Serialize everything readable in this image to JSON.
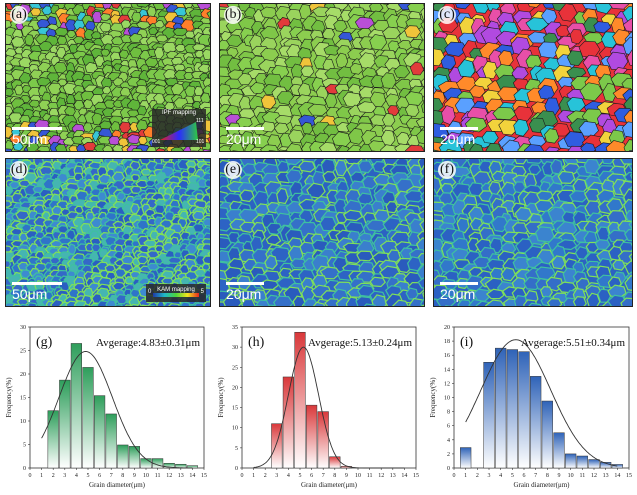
{
  "panels": {
    "a": {
      "label": "(a)",
      "scale": "50μm",
      "legend_title": "IPF mapping",
      "legend_111": "111",
      "legend_001": "001",
      "legend_101": "101"
    },
    "b": {
      "label": "(b)",
      "scale": "20μm"
    },
    "c": {
      "label": "(c)",
      "scale": "20μm"
    },
    "d": {
      "label": "(d)",
      "scale": "50μm",
      "legend_title": "KAM mapping",
      "legend_min": "0",
      "legend_max": "5"
    },
    "e": {
      "label": "(e)",
      "scale": "20μm"
    },
    "f": {
      "label": "(f)",
      "scale": "20μm"
    }
  },
  "colors": {
    "g": "#2e9e5b",
    "h": "#d9383a",
    "i": "#2f63b8"
  },
  "chart_data": [
    {
      "type": "bar",
      "panel": "(g)",
      "annotation": "Avgerage:4.83±0.31μm",
      "xlabel": "Grain diameter(μm)",
      "ylabel": "Frequency(%)",
      "xlim": [
        0,
        15
      ],
      "ylim": [
        0,
        30
      ],
      "yticks": [
        0,
        5,
        10,
        15,
        20,
        25,
        30
      ],
      "x": [
        2,
        3,
        4,
        5,
        6,
        7,
        8,
        9,
        10,
        11,
        12,
        13,
        14
      ],
      "values": [
        12.2,
        18.7,
        26.5,
        21.4,
        15.4,
        11.5,
        4.9,
        4.6,
        2.0,
        2.0,
        1.0,
        0.8,
        0.5
      ],
      "fit_peak": 4.8,
      "fit_sigma": 2.3,
      "fit_height": 24.8
    },
    {
      "type": "bar",
      "panel": "(h)",
      "annotation": "Avgerage:5.13±0.24μm",
      "xlabel": "Grain diameter(μm)",
      "ylabel": "Frequency(%)",
      "xlim": [
        0,
        15
      ],
      "ylim": [
        0,
        35
      ],
      "yticks": [
        0,
        5,
        10,
        15,
        20,
        25,
        30,
        35
      ],
      "x": [
        3,
        4,
        5,
        6,
        7,
        8,
        9
      ],
      "values": [
        11.0,
        22.6,
        33.7,
        15.6,
        14.0,
        2.8,
        0.4
      ],
      "fit_peak": 5.3,
      "fit_sigma": 1.3,
      "fit_height": 30.0
    },
    {
      "type": "bar",
      "panel": "(i)",
      "annotation": "Avgerage:5.51±0.34μm",
      "xlabel": "Grain diameter(μm)",
      "ylabel": "Frequency(%)",
      "xlim": [
        0,
        15
      ],
      "ylim": [
        0,
        20
      ],
      "yticks": [
        0,
        2,
        4,
        6,
        8,
        10,
        12,
        14,
        16,
        18,
        20
      ],
      "x": [
        1,
        3,
        4,
        5,
        6,
        7,
        8,
        9,
        10,
        11,
        12,
        13,
        14
      ],
      "values": [
        2.9,
        15.0,
        17.0,
        16.8,
        16.5,
        13.0,
        9.5,
        5.0,
        2.0,
        1.7,
        1.2,
        0.8,
        0.5
      ],
      "fit_peak": 5.3,
      "fit_sigma": 3.0,
      "fit_height": 18.2
    }
  ]
}
